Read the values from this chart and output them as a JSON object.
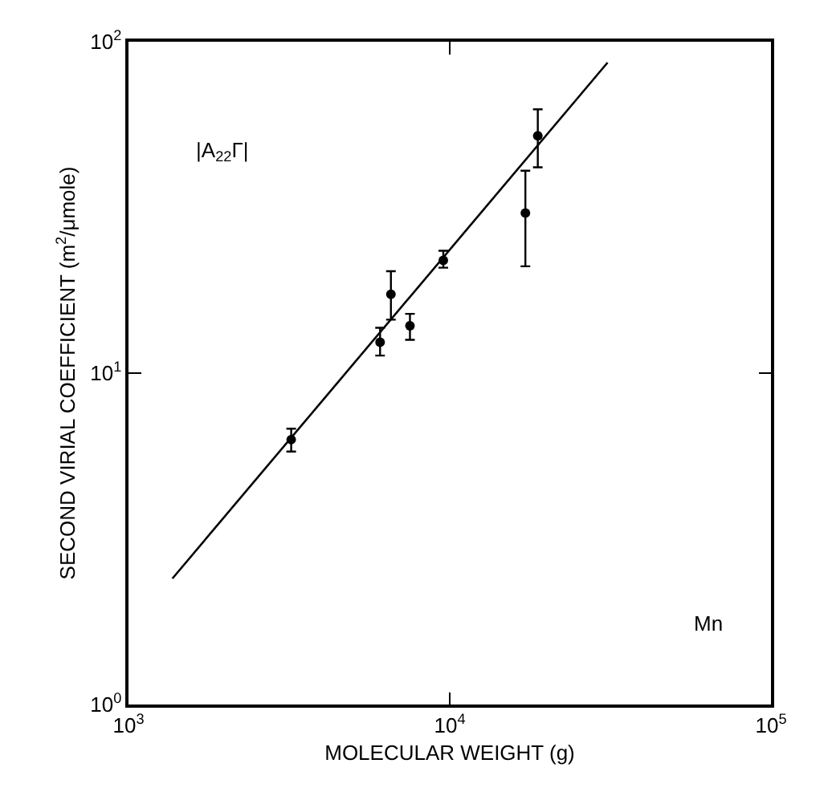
{
  "chart_data": {
    "type": "scatter",
    "xlabel": "MOLECULAR WEIGHT (g)",
    "ylabel": "SECOND VIRIAL COEFFICIENT (m$^{2}$/μmole)",
    "log": "xy",
    "grid": false,
    "xlim": [
      1000,
      100000
    ],
    "ylim": [
      1,
      100
    ],
    "xticks": [
      {
        "value": 1000,
        "label": "10$^{3}$"
      },
      {
        "value": 10000,
        "label": "10$^{4}$"
      },
      {
        "value": 100000,
        "label": "10$^{5}$"
      }
    ],
    "yticks": [
      {
        "value": 1,
        "label": "10$^{0}$"
      },
      {
        "value": 10,
        "label": "10$^{1}$"
      },
      {
        "value": 100,
        "label": "10$^{2}$"
      }
    ],
    "annotations": [
      "|A$_{22}$Γ|",
      "Mn"
    ],
    "series": [
      {
        "marker": "circle",
        "color": "#000000",
        "x": [
          3210,
          6070,
          6560,
          7520,
          9550,
          17200,
          18800
        ],
        "values": [
          6.3,
          12.4,
          17.3,
          13.9,
          21.9,
          30.4,
          52
        ],
        "errors": [
          [
            5.8,
            6.8
          ],
          [
            11.3,
            13.7
          ],
          [
            14.5,
            20.3
          ],
          [
            12.6,
            15.1
          ],
          [
            20.8,
            23.4
          ],
          [
            21.0,
            40.8
          ],
          [
            41.8,
            62.5
          ]
        ]
      },
      {
        "type": "line",
        "color": "#000000",
        "line_style": "solid",
        "x": [
          1370,
          31000
        ],
        "values": [
          2.4,
          86.5
        ]
      }
    ]
  }
}
